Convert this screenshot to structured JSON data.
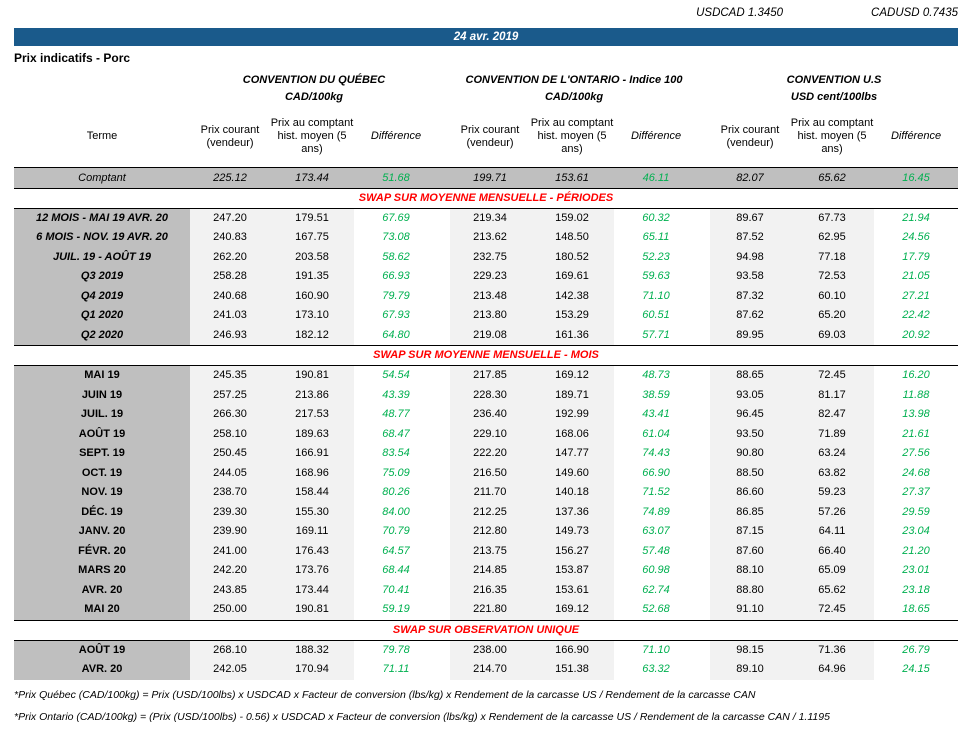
{
  "colors": {
    "blue": "#1a5a8b",
    "green": "#00b050",
    "red": "#ff0000",
    "terme_gray": "#bfbfbf",
    "band_gray": "#f2f2f2"
  },
  "fx": {
    "pairs": [
      {
        "label": "USDCAD",
        "value": "1.3450"
      },
      {
        "label": "CADUSD",
        "value": "0.7435"
      }
    ]
  },
  "header": {
    "date": "24 avr. 2019",
    "page_title": "Prix indicatifs - Porc"
  },
  "conventions": [
    {
      "title": "CONVENTION DU QUÉBEC",
      "unit": "CAD/100kg"
    },
    {
      "title": "CONVENTION DE L'ONTARIO - Indice 100",
      "unit": "CAD/100kg"
    },
    {
      "title": "CONVENTION U.S",
      "unit": "USD cent/100lbs"
    }
  ],
  "columns": {
    "terme": "Terme",
    "prix_courant": "Prix courant (vendeur)",
    "prix_comptant": "Prix au comptant hist. moyen (5 ans)",
    "difference": "Différence"
  },
  "comptant_row": {
    "terme": "Comptant",
    "values": [
      "225.12",
      "173.44",
      "51.68",
      "199.71",
      "153.61",
      "46.11",
      "82.07",
      "65.62",
      "16.45"
    ]
  },
  "sections": [
    {
      "id": "periodes",
      "title": "SWAP SUR MOYENNE MENSUELLE - PÉRIODES",
      "rows": [
        {
          "terme": "12 MOIS -  MAI 19 AVR. 20",
          "values": [
            "247.20",
            "179.51",
            "67.69",
            "219.34",
            "159.02",
            "60.32",
            "89.67",
            "67.73",
            "21.94"
          ]
        },
        {
          "terme": "6 MOIS -  NOV. 19 AVR. 20",
          "values": [
            "240.83",
            "167.75",
            "73.08",
            "213.62",
            "148.50",
            "65.11",
            "87.52",
            "62.95",
            "24.56"
          ]
        },
        {
          "terme": "JUIL. 19 -  AOÛT 19",
          "values": [
            "262.20",
            "203.58",
            "58.62",
            "232.75",
            "180.52",
            "52.23",
            "94.98",
            "77.18",
            "17.79"
          ]
        },
        {
          "terme": "Q3 2019",
          "values": [
            "258.28",
            "191.35",
            "66.93",
            "229.23",
            "169.61",
            "59.63",
            "93.58",
            "72.53",
            "21.05"
          ]
        },
        {
          "terme": "Q4 2019",
          "values": [
            "240.68",
            "160.90",
            "79.79",
            "213.48",
            "142.38",
            "71.10",
            "87.32",
            "60.10",
            "27.21"
          ]
        },
        {
          "terme": "Q1 2020",
          "values": [
            "241.03",
            "173.10",
            "67.93",
            "213.80",
            "153.29",
            "60.51",
            "87.62",
            "65.20",
            "22.42"
          ]
        },
        {
          "terme": "Q2 2020",
          "values": [
            "246.93",
            "182.12",
            "64.80",
            "219.08",
            "161.36",
            "57.71",
            "89.95",
            "69.03",
            "20.92"
          ]
        }
      ]
    },
    {
      "id": "mois",
      "title": "SWAP SUR MOYENNE MENSUELLE - MOIS",
      "rows": [
        {
          "terme": "MAI 19",
          "values": [
            "245.35",
            "190.81",
            "54.54",
            "217.85",
            "169.12",
            "48.73",
            "88.65",
            "72.45",
            "16.20"
          ]
        },
        {
          "terme": "JUIN 19",
          "values": [
            "257.25",
            "213.86",
            "43.39",
            "228.30",
            "189.71",
            "38.59",
            "93.05",
            "81.17",
            "11.88"
          ]
        },
        {
          "terme": "JUIL. 19",
          "values": [
            "266.30",
            "217.53",
            "48.77",
            "236.40",
            "192.99",
            "43.41",
            "96.45",
            "82.47",
            "13.98"
          ]
        },
        {
          "terme": "AOÛT 19",
          "values": [
            "258.10",
            "189.63",
            "68.47",
            "229.10",
            "168.06",
            "61.04",
            "93.50",
            "71.89",
            "21.61"
          ]
        },
        {
          "terme": "SEPT. 19",
          "values": [
            "250.45",
            "166.91",
            "83.54",
            "222.20",
            "147.77",
            "74.43",
            "90.80",
            "63.24",
            "27.56"
          ]
        },
        {
          "terme": "OCT. 19",
          "values": [
            "244.05",
            "168.96",
            "75.09",
            "216.50",
            "149.60",
            "66.90",
            "88.50",
            "63.82",
            "24.68"
          ]
        },
        {
          "terme": "NOV. 19",
          "values": [
            "238.70",
            "158.44",
            "80.26",
            "211.70",
            "140.18",
            "71.52",
            "86.60",
            "59.23",
            "27.37"
          ]
        },
        {
          "terme": "DÉC. 19",
          "values": [
            "239.30",
            "155.30",
            "84.00",
            "212.25",
            "137.36",
            "74.89",
            "86.85",
            "57.26",
            "29.59"
          ]
        },
        {
          "terme": "JANV. 20",
          "values": [
            "239.90",
            "169.11",
            "70.79",
            "212.80",
            "149.73",
            "63.07",
            "87.15",
            "64.11",
            "23.04"
          ]
        },
        {
          "terme": "FÉVR. 20",
          "values": [
            "241.00",
            "176.43",
            "64.57",
            "213.75",
            "156.27",
            "57.48",
            "87.60",
            "66.40",
            "21.20"
          ]
        },
        {
          "terme": "MARS 20",
          "values": [
            "242.20",
            "173.76",
            "68.44",
            "214.85",
            "153.87",
            "60.98",
            "88.10",
            "65.09",
            "23.01"
          ]
        },
        {
          "terme": "AVR. 20",
          "values": [
            "243.85",
            "173.44",
            "70.41",
            "216.35",
            "153.61",
            "62.74",
            "88.80",
            "65.62",
            "23.18"
          ]
        },
        {
          "terme": "MAI 20",
          "values": [
            "250.00",
            "190.81",
            "59.19",
            "221.80",
            "169.12",
            "52.68",
            "91.10",
            "72.45",
            "18.65"
          ]
        }
      ]
    },
    {
      "id": "unique",
      "title": "SWAP SUR OBSERVATION UNIQUE",
      "rows": [
        {
          "terme": "AOÛT 19",
          "values": [
            "268.10",
            "188.32",
            "79.78",
            "238.00",
            "166.90",
            "71.10",
            "98.15",
            "71.36",
            "26.79"
          ]
        },
        {
          "terme": "AVR. 20",
          "values": [
            "242.05",
            "170.94",
            "71.11",
            "214.70",
            "151.38",
            "63.32",
            "89.10",
            "64.96",
            "24.15"
          ]
        }
      ]
    }
  ],
  "footnotes": [
    "*Prix Québec (CAD/100kg) = Prix (USD/100lbs) x USDCAD x Facteur de conversion (lbs/kg) x Rendement de la carcasse US / Rendement de la carcasse CAN",
    "*Prix Ontario (CAD/100kg) = (Prix (USD/100lbs) - 0.56) x USDCAD x Facteur de conversion (lbs/kg) x Rendement de la carcasse US / Rendement de la carcasse CAN / 1.1195"
  ]
}
